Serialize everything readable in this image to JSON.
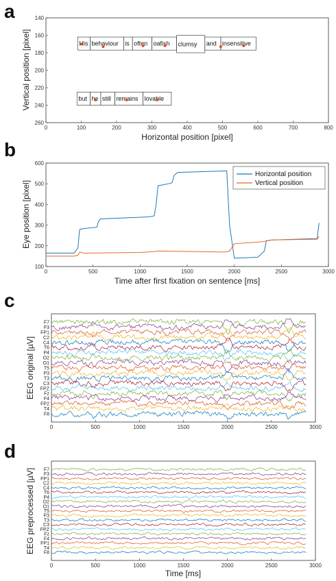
{
  "panels": {
    "a": "a",
    "b": "b",
    "c": "c",
    "d": "d"
  },
  "chart_data": [
    {
      "panel": "a",
      "type": "scatter",
      "xlabel": "Horizontal position [pixel]",
      "ylabel": "Vertical position [pixel]",
      "xlim": [
        0,
        800
      ],
      "ylim": [
        140,
        260
      ],
      "y_reversed": true,
      "xticks": [
        "0",
        "100",
        "200",
        "300",
        "400",
        "500",
        "600",
        "700",
        "800"
      ],
      "yticks": [
        "140",
        "160",
        "180",
        "200",
        "220",
        "240",
        "260"
      ],
      "words": [
        {
          "text": "His",
          "x0": 90,
          "x1": 125,
          "y0": 162,
          "y1": 177
        },
        {
          "text": "behaviour",
          "x0": 125,
          "x1": 220,
          "y0": 162,
          "y1": 177
        },
        {
          "text": "is",
          "x0": 220,
          "x1": 245,
          "y0": 162,
          "y1": 177
        },
        {
          "text": "often",
          "x0": 245,
          "x1": 300,
          "y0": 162,
          "y1": 177
        },
        {
          "text": "oafish",
          "x0": 300,
          "x1": 370,
          "y0": 162,
          "y1": 177
        },
        {
          "text": "clumsy",
          "x0": 370,
          "x1": 450,
          "y0": 160,
          "y1": 180
        },
        {
          "text": "and",
          "x0": 450,
          "x1": 495,
          "y0": 162,
          "y1": 177
        },
        {
          "text": "insensitive",
          "x0": 495,
          "x1": 595,
          "y0": 162,
          "y1": 177
        },
        {
          "text": "but",
          "x0": 88,
          "x1": 125,
          "y0": 225,
          "y1": 240
        },
        {
          "text": "he",
          "x0": 125,
          "x1": 155,
          "y0": 225,
          "y1": 240
        },
        {
          "text": "still",
          "x0": 155,
          "x1": 195,
          "y0": 225,
          "y1": 240
        },
        {
          "text": "remains",
          "x0": 195,
          "x1": 275,
          "y0": 225,
          "y1": 240
        },
        {
          "text": "lovable",
          "x0": 275,
          "x1": 355,
          "y0": 225,
          "y1": 240
        }
      ],
      "fixations": [
        {
          "x": 100,
          "y": 170
        },
        {
          "x": 162,
          "y": 173
        },
        {
          "x": 275,
          "y": 172
        },
        {
          "x": 337,
          "y": 172
        },
        {
          "x": 495,
          "y": 173
        },
        {
          "x": 560,
          "y": 172
        },
        {
          "x": 140,
          "y": 234
        },
        {
          "x": 228,
          "y": 234
        },
        {
          "x": 315,
          "y": 234
        }
      ],
      "fixation_color": "#e8452c"
    },
    {
      "panel": "b",
      "type": "line",
      "xlabel": "Time after first fixation on sentence [ms]",
      "ylabel": "Eye position [pixel]",
      "xlim": [
        0,
        3000
      ],
      "ylim": [
        100,
        600
      ],
      "xticks": [
        "0",
        "500",
        "1000",
        "1500",
        "2000",
        "2500",
        "3000"
      ],
      "yticks": [
        "100",
        "200",
        "300",
        "400",
        "500",
        "600"
      ],
      "legend_position": "top-right",
      "series": [
        {
          "name": "Horizontal position",
          "color": "#1f77b4",
          "x": [
            0,
            300,
            340,
            355,
            360,
            400,
            540,
            560,
            580,
            1100,
            1150,
            1170,
            1190,
            1300,
            1340,
            1360,
            1400,
            1900,
            1920,
            1950,
            2000,
            2250,
            2320,
            2340,
            2400,
            2880,
            2900
          ],
          "y": [
            165,
            165,
            190,
            270,
            280,
            283,
            290,
            320,
            330,
            340,
            345,
            400,
            490,
            500,
            505,
            540,
            555,
            562,
            562,
            300,
            140,
            145,
            175,
            225,
            228,
            235,
            310
          ]
        },
        {
          "name": "Vertical position",
          "color": "#e8662c",
          "x": [
            0,
            300,
            340,
            360,
            400,
            1000,
            1150,
            1200,
            1900,
            1950,
            2000,
            2300,
            2400,
            2880,
            2900
          ],
          "y": [
            150,
            150,
            155,
            170,
            165,
            168,
            172,
            175,
            170,
            175,
            210,
            220,
            228,
            232,
            245
          ]
        }
      ]
    },
    {
      "panel": "c",
      "type": "line",
      "xlabel": "",
      "ylabel": "EEG original [µV]",
      "xlim": [
        0,
        3000
      ],
      "xticks": [
        "0",
        "500",
        "1000",
        "1500",
        "2000",
        "2500",
        "3000"
      ],
      "channels": [
        "F7",
        "F3",
        "FP1",
        "C2",
        "C4",
        "T6",
        "P4",
        "O2",
        "O1",
        "T5",
        "P3",
        "T3",
        "C3",
        "FPZ",
        "Fz",
        "F4",
        "FP2",
        "T4",
        "F8"
      ]
    },
    {
      "panel": "d",
      "type": "line",
      "xlabel": "Time [ms]",
      "ylabel": "EEG preprocessed [µV]",
      "xlim": [
        0,
        3000
      ],
      "xticks": [
        "0",
        "500",
        "1000",
        "1500",
        "2000",
        "2500",
        "3000"
      ],
      "channels": [
        "F7",
        "F3",
        "FP1",
        "C2",
        "C4",
        "T6",
        "P4",
        "O2",
        "O1",
        "T5",
        "P3",
        "T3",
        "C3",
        "FPZ",
        "Fz",
        "F4",
        "FP1",
        "T4",
        "F8"
      ]
    }
  ]
}
